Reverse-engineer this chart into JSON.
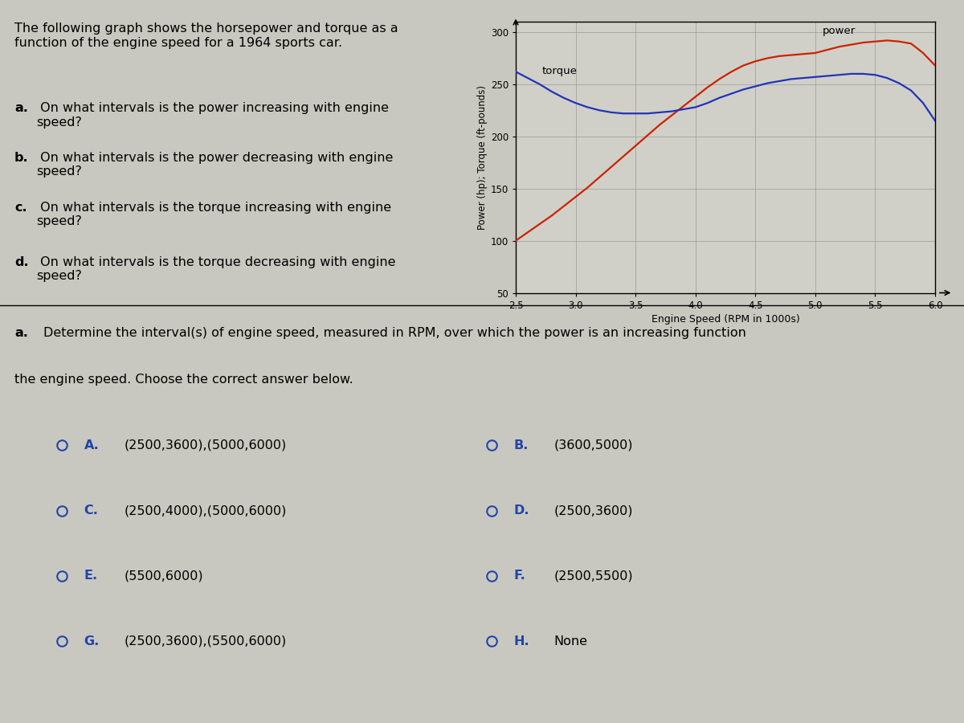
{
  "title_text": "The following graph shows the horsepower and torque as a\nfunction of the engine speed for a 1964 sports car.",
  "questions_left": [
    "a. On what intervals is the power increasing with engine\nspeed?",
    "b. On what intervals is the power decreasing with engine\nspeed?",
    "c. On what intervals is the torque increasing with engine\nspeed?",
    "d. On what intervals is the torque decreasing with engine\nspeed?"
  ],
  "xlabel": "Engine Speed (RPM in 1000s)",
  "ylabel": "Power (hp); Torque (ft-pounds)",
  "xlim": [
    2.5,
    6.0
  ],
  "ylim": [
    50,
    310
  ],
  "yticks": [
    50,
    100,
    150,
    200,
    250,
    300
  ],
  "xticks": [
    2.5,
    3.0,
    3.5,
    4.0,
    4.5,
    5.0,
    5.5,
    6.0
  ],
  "power_color": "#cc2200",
  "torque_color": "#2233bb",
  "grid_color": "#999999",
  "bg_color": "#c8c8c0",
  "chart_bg": "#d0d0c8",
  "section_a_text": "a. Determine the interval(s) of engine speed, measured in RPM, over which the power is an increasing function\nthe engine speed. Choose the correct answer below.",
  "answers_left": [
    {
      "label": "A.",
      "text": "(2500,3600),(5000,6000)"
    },
    {
      "label": "C.",
      "text": "(2500,4000),(5000,6000)"
    },
    {
      "label": "E.",
      "text": "(5500,6000)"
    },
    {
      "label": "G.",
      "text": "(2500,3600),(5500,6000)"
    }
  ],
  "answers_right": [
    {
      "label": "B.",
      "text": "(3600,5000)"
    },
    {
      "label": "D.",
      "text": "(2500,3600)"
    },
    {
      "label": "F.",
      "text": "(2500,5500)"
    },
    {
      "label": "H.",
      "text": "None"
    }
  ],
  "power_x": [
    2.5,
    2.6,
    2.7,
    2.8,
    2.9,
    3.0,
    3.1,
    3.2,
    3.3,
    3.4,
    3.5,
    3.6,
    3.7,
    3.8,
    3.9,
    4.0,
    4.1,
    4.2,
    4.3,
    4.4,
    4.5,
    4.6,
    4.7,
    4.8,
    4.9,
    5.0,
    5.1,
    5.2,
    5.3,
    5.4,
    5.5,
    5.6,
    5.7,
    5.8,
    5.9,
    6.0
  ],
  "power_y": [
    100,
    108,
    116,
    124,
    133,
    142,
    151,
    161,
    171,
    181,
    191,
    201,
    211,
    220,
    229,
    238,
    247,
    255,
    262,
    268,
    272,
    275,
    277,
    278,
    279,
    280,
    283,
    286,
    288,
    290,
    291,
    292,
    291,
    289,
    280,
    268
  ],
  "torque_x": [
    2.5,
    2.6,
    2.7,
    2.8,
    2.9,
    3.0,
    3.1,
    3.2,
    3.3,
    3.4,
    3.5,
    3.6,
    3.7,
    3.8,
    3.9,
    4.0,
    4.1,
    4.2,
    4.3,
    4.4,
    4.5,
    4.6,
    4.7,
    4.8,
    4.9,
    5.0,
    5.1,
    5.2,
    5.3,
    5.4,
    5.5,
    5.6,
    5.7,
    5.8,
    5.9,
    6.0
  ],
  "torque_y": [
    262,
    256,
    250,
    243,
    237,
    232,
    228,
    225,
    223,
    222,
    222,
    222,
    223,
    224,
    226,
    228,
    232,
    237,
    241,
    245,
    248,
    251,
    253,
    255,
    256,
    257,
    258,
    259,
    260,
    260,
    259,
    256,
    251,
    244,
    232,
    215
  ],
  "fig_width": 12.0,
  "fig_height": 9.0
}
